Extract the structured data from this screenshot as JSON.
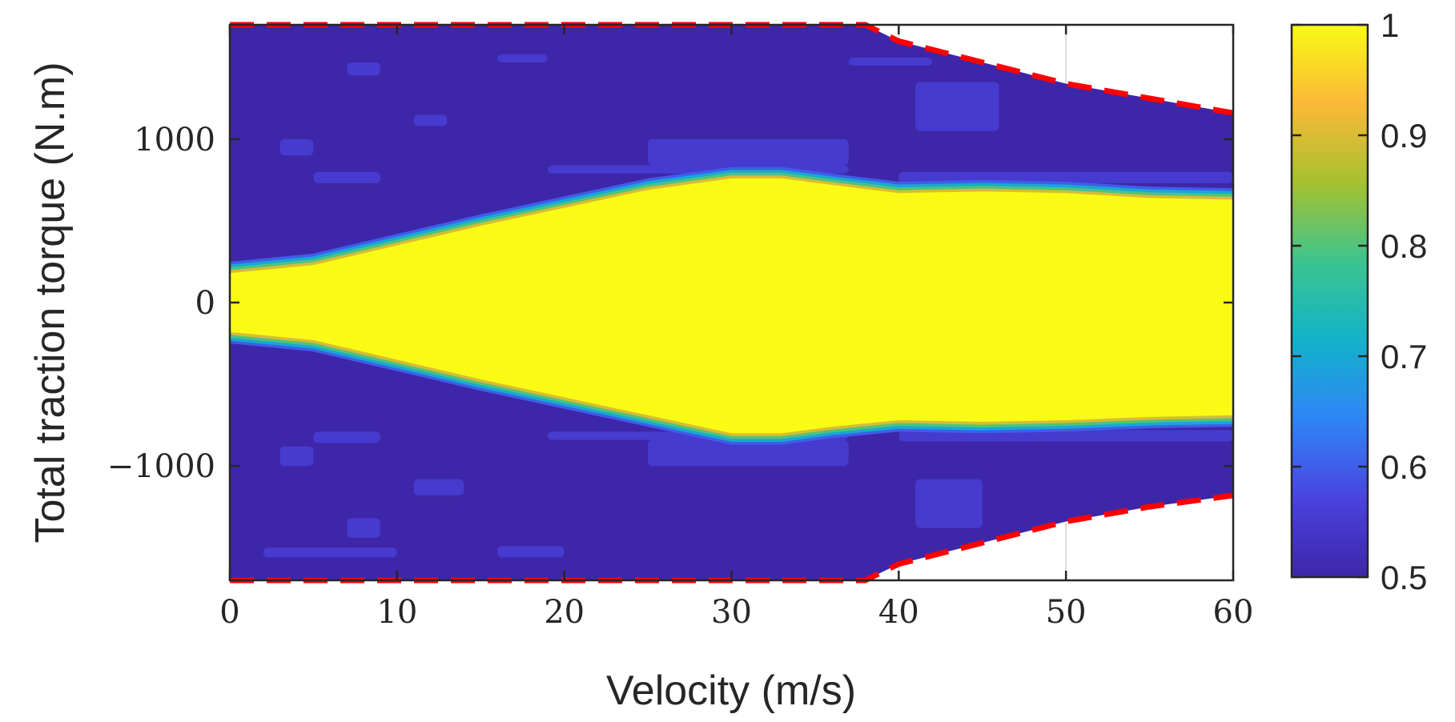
{
  "chart_data": {
    "type": "heatmap",
    "title": "",
    "xlabel": "Velocity (m/s)",
    "ylabel": "Total traction torque (N.m)",
    "xlim": [
      0,
      60
    ],
    "ylim": [
      -1700,
      1700
    ],
    "x_ticks": [
      0,
      10,
      20,
      30,
      40,
      50,
      60
    ],
    "x_tick_labels": [
      "0",
      "10",
      "20",
      "30",
      "40",
      "50",
      "60"
    ],
    "y_ticks": [
      -1000,
      0,
      1000
    ],
    "y_tick_labels": [
      "−1000",
      "0",
      "1000"
    ],
    "grid": "x-lines at 40 and 50 visible in the unfilled region",
    "colorbar": {
      "range": [
        0.5,
        1
      ],
      "ticks": [
        0.5,
        0.6,
        0.7,
        0.8,
        0.9,
        1
      ],
      "tick_labels": [
        "0.5",
        "0.6",
        "0.7",
        "0.8",
        "0.9",
        "1"
      ],
      "colormap": "parula",
      "colors": [
        "#3e26a8",
        "#4a43e0",
        "#2f85f7",
        "#12b2ca",
        "#3cc48e",
        "#a6c12e",
        "#fbb938",
        "#f9fb15"
      ]
    },
    "background_value": 0.5,
    "max_torque_envelope": {
      "style": "red dashed",
      "color": "#ff0000",
      "velocity": [
        0,
        38,
        40,
        45,
        50,
        55,
        60
      ],
      "torque_upper": [
        1700,
        1700,
        1600,
        1470,
        1340,
        1250,
        1160
      ],
      "torque_lower": [
        -1700,
        -1700,
        -1600,
        -1470,
        -1340,
        -1250,
        -1180
      ]
    },
    "high_efficiency_region": {
      "value": 1,
      "velocity": [
        0,
        2,
        5,
        10,
        15,
        20,
        25,
        30,
        33,
        36,
        40,
        45,
        50,
        55,
        60
      ],
      "torque_upper": [
        180,
        200,
        230,
        350,
        470,
        580,
        690,
        760,
        760,
        720,
        670,
        680,
        670,
        640,
        630
      ],
      "torque_lower": [
        -180,
        -200,
        -230,
        -350,
        -470,
        -580,
        -690,
        -800,
        -800,
        -760,
        -720,
        -730,
        -720,
        -700,
        -690
      ]
    },
    "transition_band": {
      "value_range": [
        0.6,
        0.9
      ],
      "width_torque": 70
    },
    "light_blue_patches": {
      "value": 0.55,
      "patches": [
        {
          "v": [
            7,
            9
          ],
          "t": [
            1390,
            1470
          ]
        },
        {
          "v": [
            16,
            19
          ],
          "t": [
            1470,
            1520
          ]
        },
        {
          "v": [
            11,
            13
          ],
          "t": [
            1080,
            1150
          ]
        },
        {
          "v": [
            3,
            5
          ],
          "t": [
            900,
            1000
          ]
        },
        {
          "v": [
            5,
            9
          ],
          "t": [
            730,
            800
          ]
        },
        {
          "v": [
            25,
            37
          ],
          "t": [
            840,
            1000
          ]
        },
        {
          "v": [
            19,
            37
          ],
          "t": [
            790,
            840
          ]
        },
        {
          "v": [
            40,
            60
          ],
          "t": [
            730,
            800
          ]
        },
        {
          "v": [
            41,
            46
          ],
          "t": [
            1050,
            1350
          ]
        },
        {
          "v": [
            37,
            42
          ],
          "t": [
            1450,
            1500
          ]
        },
        {
          "v": [
            25,
            37
          ],
          "t": [
            -1000,
            -840
          ]
        },
        {
          "v": [
            19,
            37
          ],
          "t": [
            -840,
            -790
          ]
        },
        {
          "v": [
            40,
            60
          ],
          "t": [
            -850,
            -780
          ]
        },
        {
          "v": [
            5,
            9
          ],
          "t": [
            -860,
            -790
          ]
        },
        {
          "v": [
            3,
            5
          ],
          "t": [
            -1000,
            -880
          ]
        },
        {
          "v": [
            11,
            14
          ],
          "t": [
            -1180,
            -1080
          ]
        },
        {
          "v": [
            41,
            45
          ],
          "t": [
            -1380,
            -1080
          ]
        },
        {
          "v": [
            7,
            9
          ],
          "t": [
            -1440,
            -1320
          ]
        },
        {
          "v": [
            2,
            10
          ],
          "t": [
            -1560,
            -1500
          ]
        },
        {
          "v": [
            16,
            20
          ],
          "t": [
            -1560,
            -1490
          ]
        }
      ]
    }
  }
}
